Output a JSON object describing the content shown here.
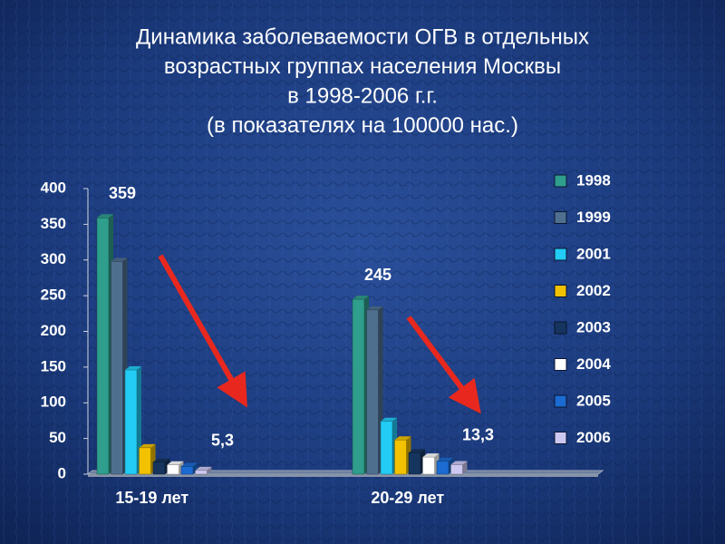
{
  "chart_data": {
    "type": "bar3d",
    "title": [
      "Динамика заболеваемости ОГВ в отдельных",
      "возрастных группах населения Москвы",
      "в 1998-2006 г.г.",
      "(в показателях на 100000 нас.)"
    ],
    "categories": [
      "15-19 лет",
      "20-29 лет"
    ],
    "series": [
      {
        "name": "1998",
        "color": "#2f9e8c",
        "values": [
          359,
          245
        ],
        "value_labels": [
          "359",
          "245"
        ]
      },
      {
        "name": "1999",
        "color": "#4f6f8f",
        "values": [
          298,
          230
        ]
      },
      {
        "name": "2001",
        "color": "#22ccf5",
        "values": [
          146,
          74
        ]
      },
      {
        "name": "2002",
        "color": "#f2c200",
        "values": [
          37,
          48
        ]
      },
      {
        "name": "2003",
        "color": "#16355e",
        "values": [
          17,
          30
        ]
      },
      {
        "name": "2004",
        "color": "#ffffff",
        "values": [
          13,
          24
        ]
      },
      {
        "name": "2005",
        "color": "#1b6bd2",
        "values": [
          11,
          18
        ]
      },
      {
        "name": "2006",
        "color": "#cdc8f2",
        "values": [
          5.3,
          13.3
        ],
        "value_labels": [
          "5,3",
          "13,3"
        ]
      }
    ],
    "ylim": [
      0,
      400
    ],
    "yticks": [
      0,
      50,
      100,
      150,
      200,
      250,
      300,
      350,
      400
    ],
    "legend": "right"
  }
}
